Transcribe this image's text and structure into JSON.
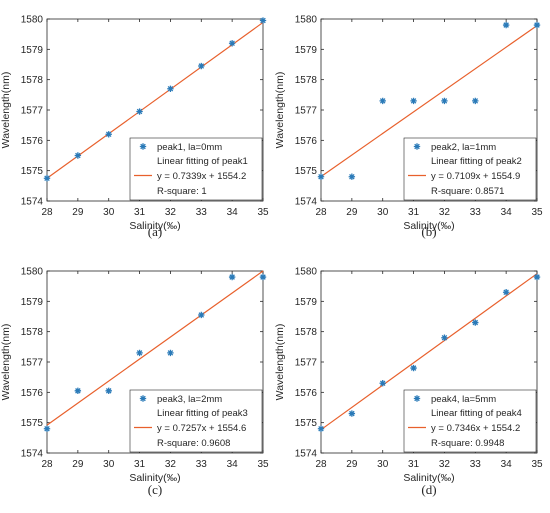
{
  "colors": {
    "marker": "#2a7ab8",
    "fit_line": "#e8602c",
    "axis": "#262626"
  },
  "chart_data": [
    {
      "type": "scatter",
      "caption": "(a)",
      "xlabel": "Salinity(‰)",
      "ylabel": "Wavelength(nm)",
      "xlim": [
        28,
        35
      ],
      "ylim": [
        1574,
        1580
      ],
      "xticks": [
        28,
        29,
        30,
        31,
        32,
        33,
        34,
        35
      ],
      "yticks": [
        1574,
        1575,
        1576,
        1577,
        1578,
        1579,
        1580
      ],
      "legend_position": "bottom-right",
      "series": [
        {
          "name": "peak1, la=0mm",
          "kind": "markers",
          "x": [
            28,
            29,
            30,
            31,
            32,
            33,
            34,
            35
          ],
          "y": [
            1574.75,
            1575.5,
            1576.2,
            1576.95,
            1577.7,
            1578.45,
            1579.2,
            1579.95
          ]
        },
        {
          "name": "Linear fitting of peak1",
          "kind": "fit",
          "slope": 0.7339,
          "intercept": 1554.2
        }
      ],
      "legend_lines": [
        "peak1, la=0mm",
        "Linear fitting of peak1",
        "y = 0.7339x + 1554.2",
        "R-square: 1"
      ]
    },
    {
      "type": "scatter",
      "caption": "(b)",
      "xlabel": "Salinity(‰)",
      "ylabel": "Wavelength(nm)",
      "xlim": [
        28,
        35
      ],
      "ylim": [
        1574,
        1580
      ],
      "xticks": [
        28,
        29,
        30,
        31,
        32,
        33,
        34,
        35
      ],
      "yticks": [
        1574,
        1575,
        1576,
        1577,
        1578,
        1579,
        1580
      ],
      "legend_position": "bottom-right",
      "series": [
        {
          "name": "peak2, la=1mm",
          "kind": "markers",
          "x": [
            28,
            29,
            30,
            31,
            32,
            33,
            34,
            35
          ],
          "y": [
            1574.8,
            1574.8,
            1577.3,
            1577.3,
            1577.3,
            1577.3,
            1579.8,
            1579.8
          ]
        },
        {
          "name": "Linear fitting of peak2",
          "kind": "fit",
          "slope": 0.7109,
          "intercept": 1554.9
        }
      ],
      "legend_lines": [
        "peak2, la=1mm",
        "Linear fitting of peak2",
        "y = 0.7109x + 1554.9",
        "R-square: 0.8571"
      ]
    },
    {
      "type": "scatter",
      "caption": "(c)",
      "xlabel": "Salinity(‰)",
      "ylabel": "Wavelength(nm)",
      "xlim": [
        28,
        35
      ],
      "ylim": [
        1574,
        1580
      ],
      "xticks": [
        28,
        29,
        30,
        31,
        32,
        33,
        34,
        35
      ],
      "yticks": [
        1574,
        1575,
        1576,
        1577,
        1578,
        1579,
        1580
      ],
      "legend_position": "bottom-right",
      "series": [
        {
          "name": "peak3, la=2mm",
          "kind": "markers",
          "x": [
            28,
            29,
            30,
            31,
            32,
            33,
            34,
            35
          ],
          "y": [
            1574.8,
            1576.05,
            1576.05,
            1577.3,
            1577.3,
            1578.55,
            1579.8,
            1579.8
          ]
        },
        {
          "name": "Linear fitting of peak3",
          "kind": "fit",
          "slope": 0.7257,
          "intercept": 1554.6
        }
      ],
      "legend_lines": [
        "peak3, la=2mm",
        "Linear fitting of peak3",
        "y = 0.7257x + 1554.6",
        "R-square: 0.9608"
      ]
    },
    {
      "type": "scatter",
      "caption": "(d)",
      "xlabel": "Salinity(‰)",
      "ylabel": "Wavelength(nm)",
      "xlim": [
        28,
        35
      ],
      "ylim": [
        1574,
        1580
      ],
      "xticks": [
        28,
        29,
        30,
        31,
        32,
        33,
        34,
        35
      ],
      "yticks": [
        1574,
        1575,
        1576,
        1577,
        1578,
        1579,
        1580
      ],
      "legend_position": "bottom-right",
      "series": [
        {
          "name": "peak4, la=5mm",
          "kind": "markers",
          "x": [
            28,
            29,
            30,
            31,
            32,
            33,
            34,
            35
          ],
          "y": [
            1574.8,
            1575.3,
            1576.3,
            1576.8,
            1577.8,
            1578.3,
            1579.3,
            1579.8
          ]
        },
        {
          "name": "Linear fitting of peak4",
          "kind": "fit",
          "slope": 0.7346,
          "intercept": 1554.2
        }
      ],
      "legend_lines": [
        "peak4, la=5mm",
        "Linear fitting of peak4",
        "y = 0.7346x + 1554.2",
        "R-square: 0.9948"
      ]
    }
  ]
}
